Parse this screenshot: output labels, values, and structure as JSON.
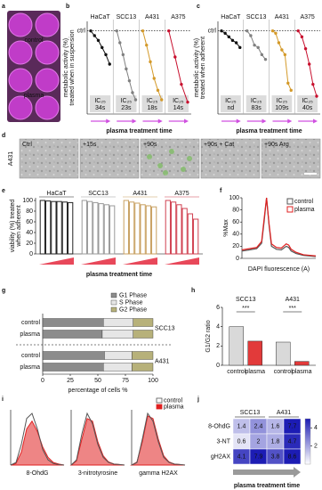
{
  "a": {
    "label": "a",
    "texts": [
      "control",
      "plasma"
    ]
  },
  "b": {
    "label": "b",
    "type": "line",
    "ylabel": [
      "metabolic activity (%)",
      "treated when in suspension"
    ],
    "ylim": [
      30,
      108
    ],
    "yticks": [
      {
        "value": 100,
        "label": "ctrl"
      }
    ],
    "xlabel": "plasma treatment time",
    "ic_label": "IC₂₅",
    "groups": [
      {
        "name": "HaCaT",
        "color": "#111111",
        "values": [
          100,
          96,
          92,
          86,
          80,
          72
        ],
        "ic": "34s"
      },
      {
        "name": "SCC13",
        "color": "#808080",
        "values": [
          100,
          90,
          80,
          68,
          58,
          48,
          42
        ],
        "ic": "23s"
      },
      {
        "name": "A431",
        "color": "#d49a2a",
        "values": [
          100,
          88,
          74,
          60,
          50,
          42
        ],
        "ic": "18s"
      },
      {
        "name": "A375",
        "color": "#c8102e",
        "values": [
          100,
          78,
          55,
          40
        ],
        "ic": "14s"
      }
    ]
  },
  "c": {
    "label": "c",
    "type": "line",
    "ylabel": [
      "metabolic activity (%)",
      "treated when adherent"
    ],
    "ylim": [
      30,
      108
    ],
    "yticks": [
      {
        "value": 100,
        "label": "ctrl"
      }
    ],
    "xlabel": "plasma treatment time",
    "ic_label": "IC₂₅",
    "groups": [
      {
        "name": "HaCaT",
        "color": "#111111",
        "values": [
          100,
          98,
          95,
          92,
          90,
          86
        ],
        "ic": "nd"
      },
      {
        "name": "SCC13",
        "color": "#808080",
        "values": [
          100,
          96,
          88,
          86,
          80,
          76
        ],
        "ic": "83s"
      },
      {
        "name": "A431",
        "color": "#d49a2a",
        "values": [
          100,
          98,
          90,
          84,
          80,
          56,
          50
        ],
        "ic": "109s"
      },
      {
        "name": "A375",
        "color": "#c8102e",
        "values": [
          100,
          95,
          85,
          72,
          55,
          45
        ],
        "ic": "40s"
      }
    ]
  },
  "d": {
    "label": "d",
    "row_label": "A431",
    "images": [
      "Ctrl",
      "+15s",
      "+90s",
      "+90s + Cat",
      "+90s Arg"
    ]
  },
  "e": {
    "label": "e",
    "type": "bar",
    "ylabel": [
      "viability (%) treated",
      "when adherent"
    ],
    "ylim": [
      0,
      105
    ],
    "yticks": [
      0,
      20,
      40,
      60,
      80,
      100
    ],
    "xlabel": "plasma treatment time",
    "groups": [
      {
        "name": "HaCaT",
        "color": "#222222",
        "values": [
          100,
          99,
          98,
          98,
          97,
          96
        ]
      },
      {
        "name": "SCC13",
        "color": "#9a9a9a",
        "values": [
          100,
          98,
          96,
          94,
          92,
          90
        ]
      },
      {
        "name": "A431",
        "color": "#c8a060",
        "values": [
          100,
          97,
          95,
          92,
          90,
          88
        ]
      },
      {
        "name": "A375",
        "color": "#d04050",
        "values": [
          100,
          97,
          92,
          85,
          75,
          65
        ]
      }
    ]
  },
  "f": {
    "label": "f",
    "type": "line",
    "ylabel": "%Max",
    "xlabel": "DAPI fluorescence (A)",
    "xlim": [
      0,
      30
    ],
    "ylim": [
      0,
      100
    ],
    "yticks": [
      0,
      20,
      40,
      60,
      80,
      100
    ],
    "x": [
      0,
      3,
      6,
      8,
      9,
      10,
      11,
      12,
      14,
      16,
      18,
      19,
      20,
      22,
      25,
      30
    ],
    "series": [
      {
        "name": "control",
        "color": "#555555",
        "values": [
          12,
          14,
          16,
          25,
          60,
          100,
          55,
          20,
          15,
          14,
          20,
          18,
          12,
          8,
          5,
          3
        ]
      },
      {
        "name": "plasma",
        "color": "#e02020",
        "values": [
          14,
          16,
          18,
          28,
          65,
          100,
          58,
          24,
          18,
          17,
          24,
          22,
          15,
          10,
          6,
          4
        ]
      }
    ]
  },
  "g": {
    "label": "g",
    "type": "stacked-bar",
    "xlabel": "percentage of cells %",
    "xlim": [
      0,
      100
    ],
    "xticks": [
      0,
      25,
      50,
      75,
      100
    ],
    "groups": [
      {
        "name": "SCC13",
        "categories": [
          "control",
          "plasma"
        ]
      },
      {
        "name": "A431",
        "categories": [
          "control",
          "plasma"
        ]
      }
    ],
    "series": [
      {
        "name": "G1 Phase",
        "color": "#8c8c8c",
        "values": [
          55,
          54,
          56,
          55
        ]
      },
      {
        "name": "S Phase",
        "color": "#e6e6e6",
        "values": [
          27,
          28,
          25,
          26
        ]
      },
      {
        "name": "G2 Phase",
        "color": "#b7b17a",
        "values": [
          18,
          18,
          19,
          19
        ]
      }
    ]
  },
  "h": {
    "label": "h",
    "type": "bar",
    "ylabel": "G1/G2 ratio",
    "ylim": [
      0,
      6
    ],
    "yticks": [
      0,
      2,
      4,
      6
    ],
    "categories": [
      "control",
      "plasma"
    ],
    "colors": [
      "#d9d9d9",
      "#e23a3a"
    ],
    "groups": [
      {
        "name": "SCC13",
        "values": [
          4.0,
          2.5
        ],
        "significance": "***"
      },
      {
        "name": "A431",
        "values": [
          2.4,
          0.4
        ],
        "significance": "***"
      }
    ]
  },
  "i": {
    "label": "i",
    "type": "line",
    "xlim": [
      0,
      20
    ],
    "ylim": [
      0,
      100
    ],
    "legend": [
      "control",
      "plasma"
    ],
    "colors": [
      "#555555",
      "#e02020"
    ],
    "x": [
      0,
      2,
      4,
      6,
      8,
      10,
      12,
      14,
      16,
      18,
      20
    ],
    "panels": [
      {
        "xlabel": "8-OhdG",
        "values": [
          [
            0,
            5,
            40,
            90,
            100,
            70,
            30,
            10,
            3,
            1,
            0
          ],
          [
            0,
            3,
            25,
            70,
            85,
            65,
            35,
            15,
            5,
            2,
            0
          ]
        ]
      },
      {
        "xlabel": "3-nitrotyrosine",
        "values": [
          [
            0,
            10,
            60,
            100,
            80,
            40,
            15,
            5,
            2,
            1,
            0
          ],
          [
            0,
            8,
            50,
            90,
            85,
            45,
            18,
            6,
            2,
            1,
            0
          ]
        ]
      },
      {
        "xlabel": "gamma H2AX",
        "values": [
          [
            0,
            5,
            50,
            100,
            85,
            45,
            15,
            5,
            2,
            1,
            0
          ],
          [
            0,
            6,
            45,
            95,
            90,
            50,
            18,
            6,
            2,
            1,
            0
          ]
        ]
      }
    ]
  },
  "j": {
    "label": "j",
    "type": "heatmap",
    "groups": [
      "SCC13",
      "A431"
    ],
    "rows": [
      "8-OhdG",
      "3-NT",
      "gH2AX"
    ],
    "values": [
      [
        1.4,
        2.4,
        1.6,
        7.7
      ],
      [
        0.6,
        2.0,
        1.8,
        4.7
      ],
      [
        4.1,
        7.9,
        3.8,
        8.6
      ]
    ],
    "clim": [
      0,
      5
    ],
    "cticks": [
      2,
      4
    ],
    "color": "#1c1cb4",
    "xlabel": "plasma treatment time"
  }
}
